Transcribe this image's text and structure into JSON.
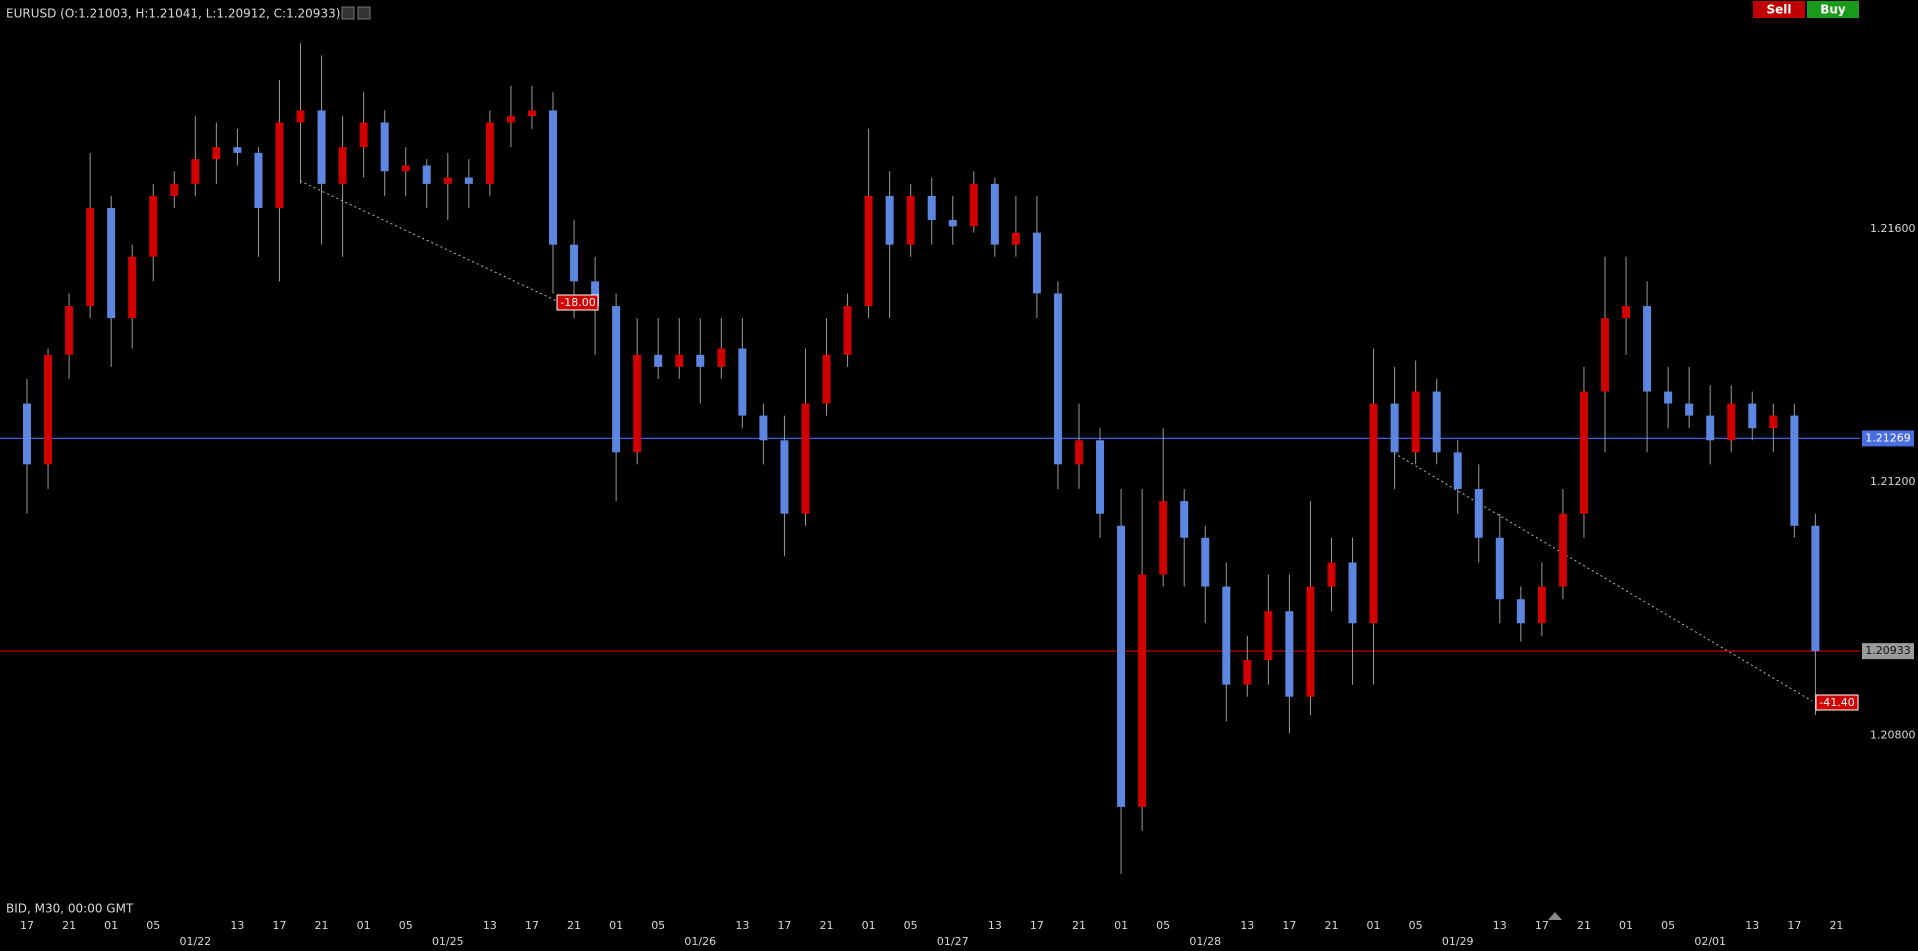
{
  "header": {
    "title": "EURUSD (O:1.21003, H:1.21041, L:1.20912, C:1.20933)",
    "sell": "Sell",
    "buy": "Buy"
  },
  "footer": "BID, M30, 00:00 GMT",
  "chart_data": {
    "type": "candlestick",
    "categories": [
      "17",
      null,
      "21",
      null,
      "01",
      null,
      "05",
      null,
      null,
      null,
      "13",
      null,
      "17",
      null,
      "21",
      null,
      "01",
      null,
      "05",
      null,
      null,
      null,
      "13",
      null,
      "17",
      null,
      "21",
      null,
      "01",
      null,
      "05",
      null,
      null,
      null,
      "13",
      null,
      "17",
      null,
      "21",
      null,
      "01",
      null,
      "05",
      null,
      null,
      null,
      "13",
      null,
      "17",
      null,
      "21",
      null,
      "01",
      null,
      "05",
      null,
      null,
      null,
      "13",
      null,
      "17",
      null,
      "21",
      null,
      "01",
      null,
      "05",
      null,
      null,
      null,
      "13",
      null,
      "17",
      null,
      "21",
      null,
      "01",
      null,
      "05",
      null,
      null,
      null,
      "13",
      null,
      "17",
      null,
      "21"
    ],
    "dates": [
      null,
      null,
      null,
      null,
      null,
      null,
      null,
      null,
      "01/22",
      null,
      null,
      null,
      null,
      null,
      null,
      null,
      null,
      null,
      null,
      null,
      "01/25",
      null,
      null,
      null,
      null,
      null,
      null,
      null,
      null,
      null,
      null,
      null,
      "01/26",
      null,
      null,
      null,
      null,
      null,
      null,
      null,
      null,
      null,
      null,
      null,
      "01/27",
      null,
      null,
      null,
      null,
      null,
      null,
      null,
      null,
      null,
      null,
      null,
      "01/28",
      null,
      null,
      null,
      null,
      null,
      null,
      null,
      null,
      null,
      null,
      null,
      "01/29",
      null,
      null,
      null,
      null,
      null,
      null,
      null,
      null,
      null,
      null,
      null,
      "02/01",
      null,
      null,
      null,
      null,
      null,
      null
    ],
    "open": [
      1.21324,
      1.21228,
      1.21401,
      1.21478,
      1.21633,
      1.21459,
      1.21556,
      1.21652,
      1.21671,
      1.2171,
      1.21729,
      1.2172,
      1.21633,
      1.21768,
      1.21787,
      1.21671,
      1.21729,
      1.21768,
      1.21691,
      1.217,
      1.21671,
      1.21681,
      1.21671,
      1.21768,
      1.21778,
      1.21787,
      1.21575,
      1.21517,
      1.21478,
      1.21247,
      1.21401,
      1.21382,
      1.21401,
      1.21382,
      1.21411,
      1.21305,
      1.21266,
      1.2115,
      1.21324,
      1.21401,
      1.21478,
      1.21652,
      1.21575,
      1.21652,
      1.21614,
      1.21604,
      1.21671,
      1.21575,
      1.21594,
      1.21498,
      1.21228,
      1.21266,
      1.21131,
      1.20687,
      1.21054,
      1.2117,
      1.21112,
      1.21035,
      1.2088,
      1.20919,
      1.20996,
      1.20861,
      1.21035,
      1.21073,
      1.20977,
      1.21324,
      1.21247,
      1.21343,
      1.21247,
      1.21189,
      1.21112,
      1.21015,
      1.20977,
      1.21035,
      1.2115,
      1.21343,
      1.21459,
      1.21478,
      1.21343,
      1.21324,
      1.21305,
      1.21266,
      1.21324,
      1.21285,
      1.21305,
      1.21131,
      null
    ],
    "high": [
      1.21363,
      1.21411,
      1.21498,
      1.2172,
      1.21652,
      1.21575,
      1.21671,
      1.21691,
      1.21778,
      1.21768,
      1.21758,
      1.21729,
      1.21835,
      1.21893,
      1.21874,
      1.21778,
      1.21816,
      1.21787,
      1.21729,
      1.2171,
      1.2172,
      1.2171,
      1.21787,
      1.21826,
      1.21826,
      1.21816,
      1.21614,
      1.21556,
      1.21498,
      1.21459,
      1.21459,
      1.21459,
      1.21459,
      1.21459,
      1.21459,
      1.21324,
      1.21305,
      1.21411,
      1.21459,
      1.21498,
      1.21758,
      1.21691,
      1.21671,
      1.21681,
      1.21652,
      1.21691,
      1.21681,
      1.21652,
      1.21652,
      1.21517,
      1.21324,
      1.21285,
      1.21189,
      1.21189,
      1.21285,
      1.21189,
      1.21131,
      1.21073,
      1.20957,
      1.21054,
      1.21054,
      1.2117,
      1.21112,
      1.21112,
      1.21411,
      1.21382,
      1.21392,
      1.21363,
      1.21266,
      1.21228,
      1.2115,
      1.21035,
      1.21073,
      1.21189,
      1.21382,
      1.21556,
      1.21556,
      1.21517,
      1.21382,
      1.21382,
      1.21353,
      1.21353,
      1.21343,
      1.21324,
      1.21324,
      1.2115,
      null
    ],
    "low": [
      1.2115,
      1.21189,
      1.21363,
      1.21459,
      1.21382,
      1.21411,
      1.21517,
      1.21633,
      1.21652,
      1.21671,
      1.217,
      1.21556,
      1.21517,
      1.21671,
      1.21575,
      1.21556,
      1.21681,
      1.21652,
      1.21652,
      1.21633,
      1.21614,
      1.21633,
      1.21652,
      1.21729,
      1.21758,
      1.21498,
      1.21459,
      1.21401,
      1.2117,
      1.21228,
      1.21363,
      1.21363,
      1.21324,
      1.21363,
      1.21285,
      1.21228,
      1.21083,
      1.21131,
      1.21305,
      1.21382,
      1.21459,
      1.21459,
      1.21556,
      1.21575,
      1.21575,
      1.21594,
      1.21556,
      1.21556,
      1.21459,
      1.21189,
      1.21189,
      1.21112,
      1.20581,
      1.20649,
      1.21035,
      1.21035,
      1.20977,
      1.20822,
      1.20861,
      1.2088,
      1.20803,
      1.20832,
      1.20996,
      1.2088,
      1.2088,
      1.21189,
      1.21228,
      1.21228,
      1.2115,
      1.21073,
      1.20977,
      1.20948,
      1.20957,
      1.21015,
      1.21112,
      1.21247,
      1.21401,
      1.21247,
      1.21285,
      1.21285,
      1.21228,
      1.21247,
      1.21266,
      1.21247,
      1.21112,
      1.20832,
      null
    ],
    "close": [
      1.21228,
      1.21401,
      1.21478,
      1.21633,
      1.21459,
      1.21556,
      1.21652,
      1.21671,
      1.2171,
      1.21729,
      1.2172,
      1.21633,
      1.21768,
      1.21787,
      1.21671,
      1.21729,
      1.21768,
      1.21691,
      1.217,
      1.21671,
      1.21681,
      1.21671,
      1.21768,
      1.21778,
      1.21787,
      1.21575,
      1.21517,
      1.21478,
      1.21247,
      1.21401,
      1.21382,
      1.21401,
      1.21382,
      1.21411,
      1.21305,
      1.21266,
      1.2115,
      1.21324,
      1.21401,
      1.21478,
      1.21652,
      1.21575,
      1.21652,
      1.21614,
      1.21604,
      1.21671,
      1.21575,
      1.21594,
      1.21498,
      1.21228,
      1.21266,
      1.2115,
      1.20687,
      1.21054,
      1.2117,
      1.21112,
      1.21035,
      1.2088,
      1.20919,
      1.20996,
      1.20861,
      1.21035,
      1.21073,
      1.20977,
      1.21324,
      1.21247,
      1.21343,
      1.21247,
      1.21189,
      1.21112,
      1.21015,
      1.20977,
      1.21035,
      1.2115,
      1.21343,
      1.21459,
      1.21478,
      1.21343,
      1.21324,
      1.21305,
      1.21266,
      1.21324,
      1.21285,
      1.21305,
      1.21131,
      1.20933,
      null
    ],
    "up_color": "#d00000",
    "down_color": "#5c86e0",
    "wick_color": "#9a9a9a",
    "ylim": [
      1.20532,
      1.21903
    ],
    "yticks": [
      {
        "value": 1.208,
        "label": "1.20800"
      },
      {
        "value": 1.212,
        "label": "1.21200"
      },
      {
        "value": 1.216,
        "label": "1.21600"
      }
    ],
    "price_lines": [
      {
        "value": 1.21269,
        "color": "#3f5fe0",
        "label_color": "#4a6ee0"
      },
      {
        "value": 1.20933,
        "color": "#c00000",
        "label_color": "#9a9a9a"
      }
    ],
    "trades": [
      {
        "label": "-18.00"
      },
      {
        "label": "-41.40"
      }
    ]
  }
}
